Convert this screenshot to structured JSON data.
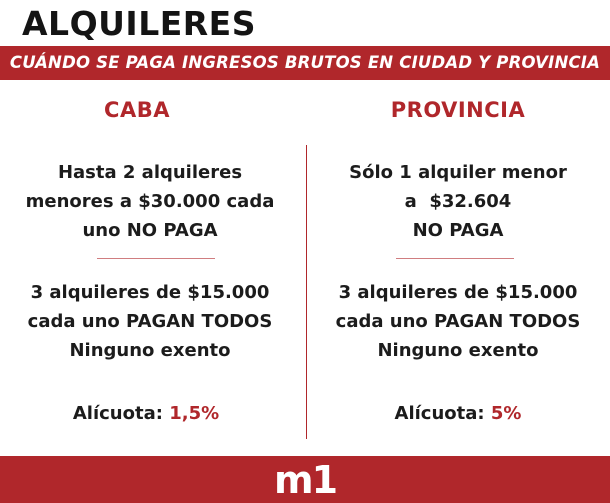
{
  "header": {
    "title": "ALQUILERES",
    "subtitle": "CUÁNDO SE PAGA INGRESOS BRUTOS EN CIUDAD Y PROVINCIA"
  },
  "columns": [
    {
      "heading": "CABA",
      "block1": [
        "Hasta 2 alquileres",
        "menores a $30.000 cada",
        "uno NO PAGA"
      ],
      "block2": [
        "3 alquileres de $15.000",
        "cada uno PAGAN TODOS",
        "Ninguno exento"
      ],
      "rate_label": "Alícuota:",
      "rate_value": "1,5%"
    },
    {
      "heading": "PROVINCIA",
      "block1": [
        "Sólo 1 alquiler menor",
        "a  $32.604",
        "NO PAGA"
      ],
      "block2": [
        "3 alquileres de $15.000",
        "cada uno PAGAN TODOS",
        "Ninguno exento"
      ],
      "rate_label": "Alícuota:",
      "rate_value": "5%"
    }
  ],
  "footer": {
    "logo": "m1"
  },
  "colors": {
    "accent": "#b0272b",
    "text": "#1c1c1c",
    "background": "#ffffff"
  }
}
